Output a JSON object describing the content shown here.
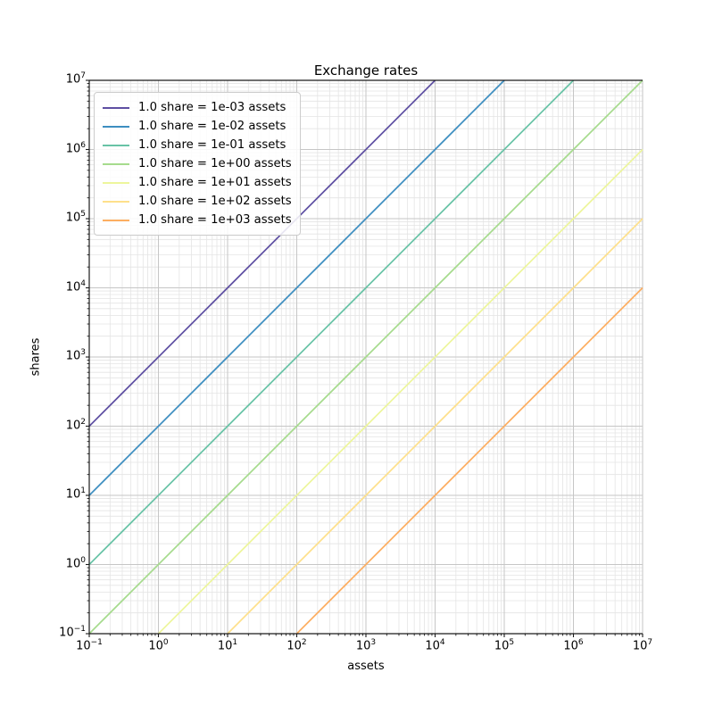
{
  "chart_data": {
    "type": "line",
    "title": "Exchange rates",
    "xlabel": "assets",
    "ylabel": "shares",
    "x_scale": "log",
    "y_scale": "log",
    "xlim": [
      0.1,
      10000000
    ],
    "ylim": [
      0.1,
      10000000
    ],
    "x_tick_exponents": [
      -1,
      0,
      1,
      2,
      3,
      4,
      5,
      6,
      7
    ],
    "y_tick_exponents": [
      -1,
      0,
      1,
      2,
      3,
      4,
      5,
      6,
      7
    ],
    "grid": {
      "major": true,
      "minor": true,
      "major_color": "#c6c6c6",
      "minor_color": "#e4e4e4"
    },
    "axis_color": "#1a1a1a",
    "legend_position": "upper-left",
    "series": [
      {
        "name": "1.0 share = 1e-03 assets",
        "assets_per_share": 0.001,
        "relation": "shares = assets / 1e-03",
        "color": "#5e4fa2"
      },
      {
        "name": "1.0 share = 1e-02 assets",
        "assets_per_share": 0.01,
        "relation": "shares = assets / 1e-02",
        "color": "#3d8ec0"
      },
      {
        "name": "1.0 share = 1e-01 assets",
        "assets_per_share": 0.1,
        "relation": "shares = assets / 1e-01",
        "color": "#68c3a6"
      },
      {
        "name": "1.0 share = 1e+00 assets",
        "assets_per_share": 1,
        "relation": "shares = assets / 1e+00",
        "color": "#a6db8d"
      },
      {
        "name": "1.0 share = 1e+01 assets",
        "assets_per_share": 10,
        "relation": "shares = assets / 1e+01",
        "color": "#edf69c"
      },
      {
        "name": "1.0 share = 1e+02 assets",
        "assets_per_share": 100,
        "relation": "shares = assets / 1e+02",
        "color": "#fee08b"
      },
      {
        "name": "1.0 share = 1e+03 assets",
        "assets_per_share": 1000,
        "relation": "shares = assets / 1e+03",
        "color": "#fdae61"
      }
    ]
  }
}
